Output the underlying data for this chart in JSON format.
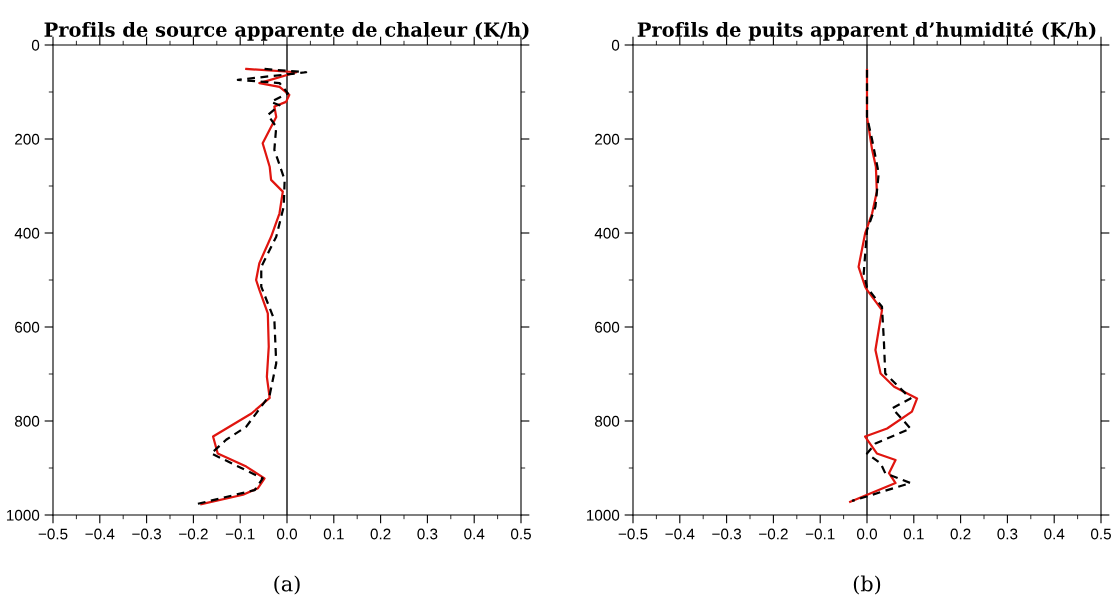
{
  "chart_data": [
    {
      "type": "line",
      "title": "Profils de source apparente de chaleur (K/h)",
      "xlim": [
        -0.5,
        0.5
      ],
      "xticks": [
        -0.5,
        -0.4,
        -0.3,
        -0.2,
        -0.1,
        {
          "value": 0,
          "label": "0.0"
        },
        0.1,
        0.2,
        0.3,
        0.4,
        0.5
      ],
      "ylim": [
        1000,
        0
      ],
      "yticks": [
        0,
        200,
        400,
        600,
        800,
        1000
      ],
      "grid": false,
      "legend": false,
      "marker": "none",
      "ref_lines": [
        {
          "axis": "x",
          "value": 0,
          "color": "#333333",
          "line_style": "solid"
        }
      ],
      "annotations": [
        "(a)"
      ],
      "series": [
        {
          "color": "#000000",
          "line_style": "dashed",
          "x": [
            -0.048,
            0.041,
            -0.105,
            -0.016,
            0.002,
            -0.034,
            -0.016,
            -0.041,
            -0.023,
            -0.027,
            -0.005,
            -0.007,
            -0.023,
            -0.055,
            -0.055,
            -0.027,
            -0.023,
            -0.037,
            -0.087,
            -0.13,
            -0.162,
            -0.052,
            -0.069,
            -0.194
          ],
          "values": [
            51,
            58,
            74,
            81,
            103,
            121,
            128,
            149,
            174,
            223,
            287,
            344,
            408,
            472,
            514,
            585,
            677,
            745,
            812,
            840,
            869,
            922,
            947,
            977
          ]
        },
        {
          "color": "#e0150f",
          "line_style": "solid",
          "x": [
            -0.087,
            0.02,
            -0.059,
            -0.016,
            0.005,
            -0.002,
            -0.027,
            -0.023,
            -0.052,
            -0.037,
            -0.034,
            -0.009,
            -0.016,
            -0.034,
            -0.059,
            -0.066,
            -0.059,
            -0.041,
            -0.039,
            -0.043,
            -0.037,
            -0.076,
            -0.158,
            -0.148,
            -0.087,
            -0.048,
            -0.062,
            -0.094,
            -0.183
          ],
          "values": [
            51,
            58,
            81,
            89,
            106,
            121,
            131,
            153,
            209,
            259,
            287,
            312,
            358,
            408,
            464,
            500,
            521,
            571,
            642,
            706,
            751,
            784,
            833,
            869,
            897,
            922,
            943,
            957,
            977
          ]
        }
      ]
    },
    {
      "type": "line",
      "title": "Profils de puits apparent d’humidité (K/h)",
      "xlim": [
        -0.5,
        0.5
      ],
      "xticks": [
        -0.5,
        -0.4,
        -0.3,
        -0.2,
        -0.1,
        {
          "value": 0,
          "label": "0.0"
        },
        0.1,
        0.2,
        0.3,
        0.4,
        0.5
      ],
      "ylim": [
        1000,
        0
      ],
      "yticks": [
        0,
        200,
        400,
        600,
        800,
        1000
      ],
      "grid": false,
      "legend": false,
      "marker": "none",
      "ref_lines": [
        {
          "axis": "x",
          "value": 0,
          "color": "#333333",
          "line_style": "solid"
        }
      ],
      "annotations": [
        "(b)"
      ],
      "series": [
        {
          "color": "#000000",
          "line_style": "dashed",
          "x": [
            0,
            0,
            0.011,
            0.025,
            0.018,
            0,
            -0.007,
            0,
            0.032,
            0.036,
            0.039,
            0.093,
            0.054,
            0.093,
            0.018,
            0,
            0.029,
            0.039,
            0.093,
            -0.032
          ],
          "values": [
            53,
            153,
            202,
            273,
            344,
            394,
            486,
            516,
            557,
            628,
            699,
            752,
            773,
            816,
            848,
            869,
            890,
            911,
            932,
            970
          ]
        },
        {
          "color": "#e0150f",
          "line_style": "solid",
          "x": [
            0,
            0,
            0.011,
            0.019,
            0.021,
            0.011,
            -0.004,
            -0.018,
            -0.004,
            0,
            0.032,
            0.018,
            0.029,
            0.058,
            0.107,
            0.096,
            0.043,
            -0.004,
            0.021,
            0.061,
            0.047,
            0.061,
            -0.036
          ],
          "values": [
            53,
            153,
            223,
            259,
            312,
            358,
            401,
            472,
            514,
            521,
            564,
            649,
            699,
            727,
            752,
            780,
            816,
            833,
            869,
            883,
            911,
            932,
            972
          ]
        }
      ]
    }
  ]
}
